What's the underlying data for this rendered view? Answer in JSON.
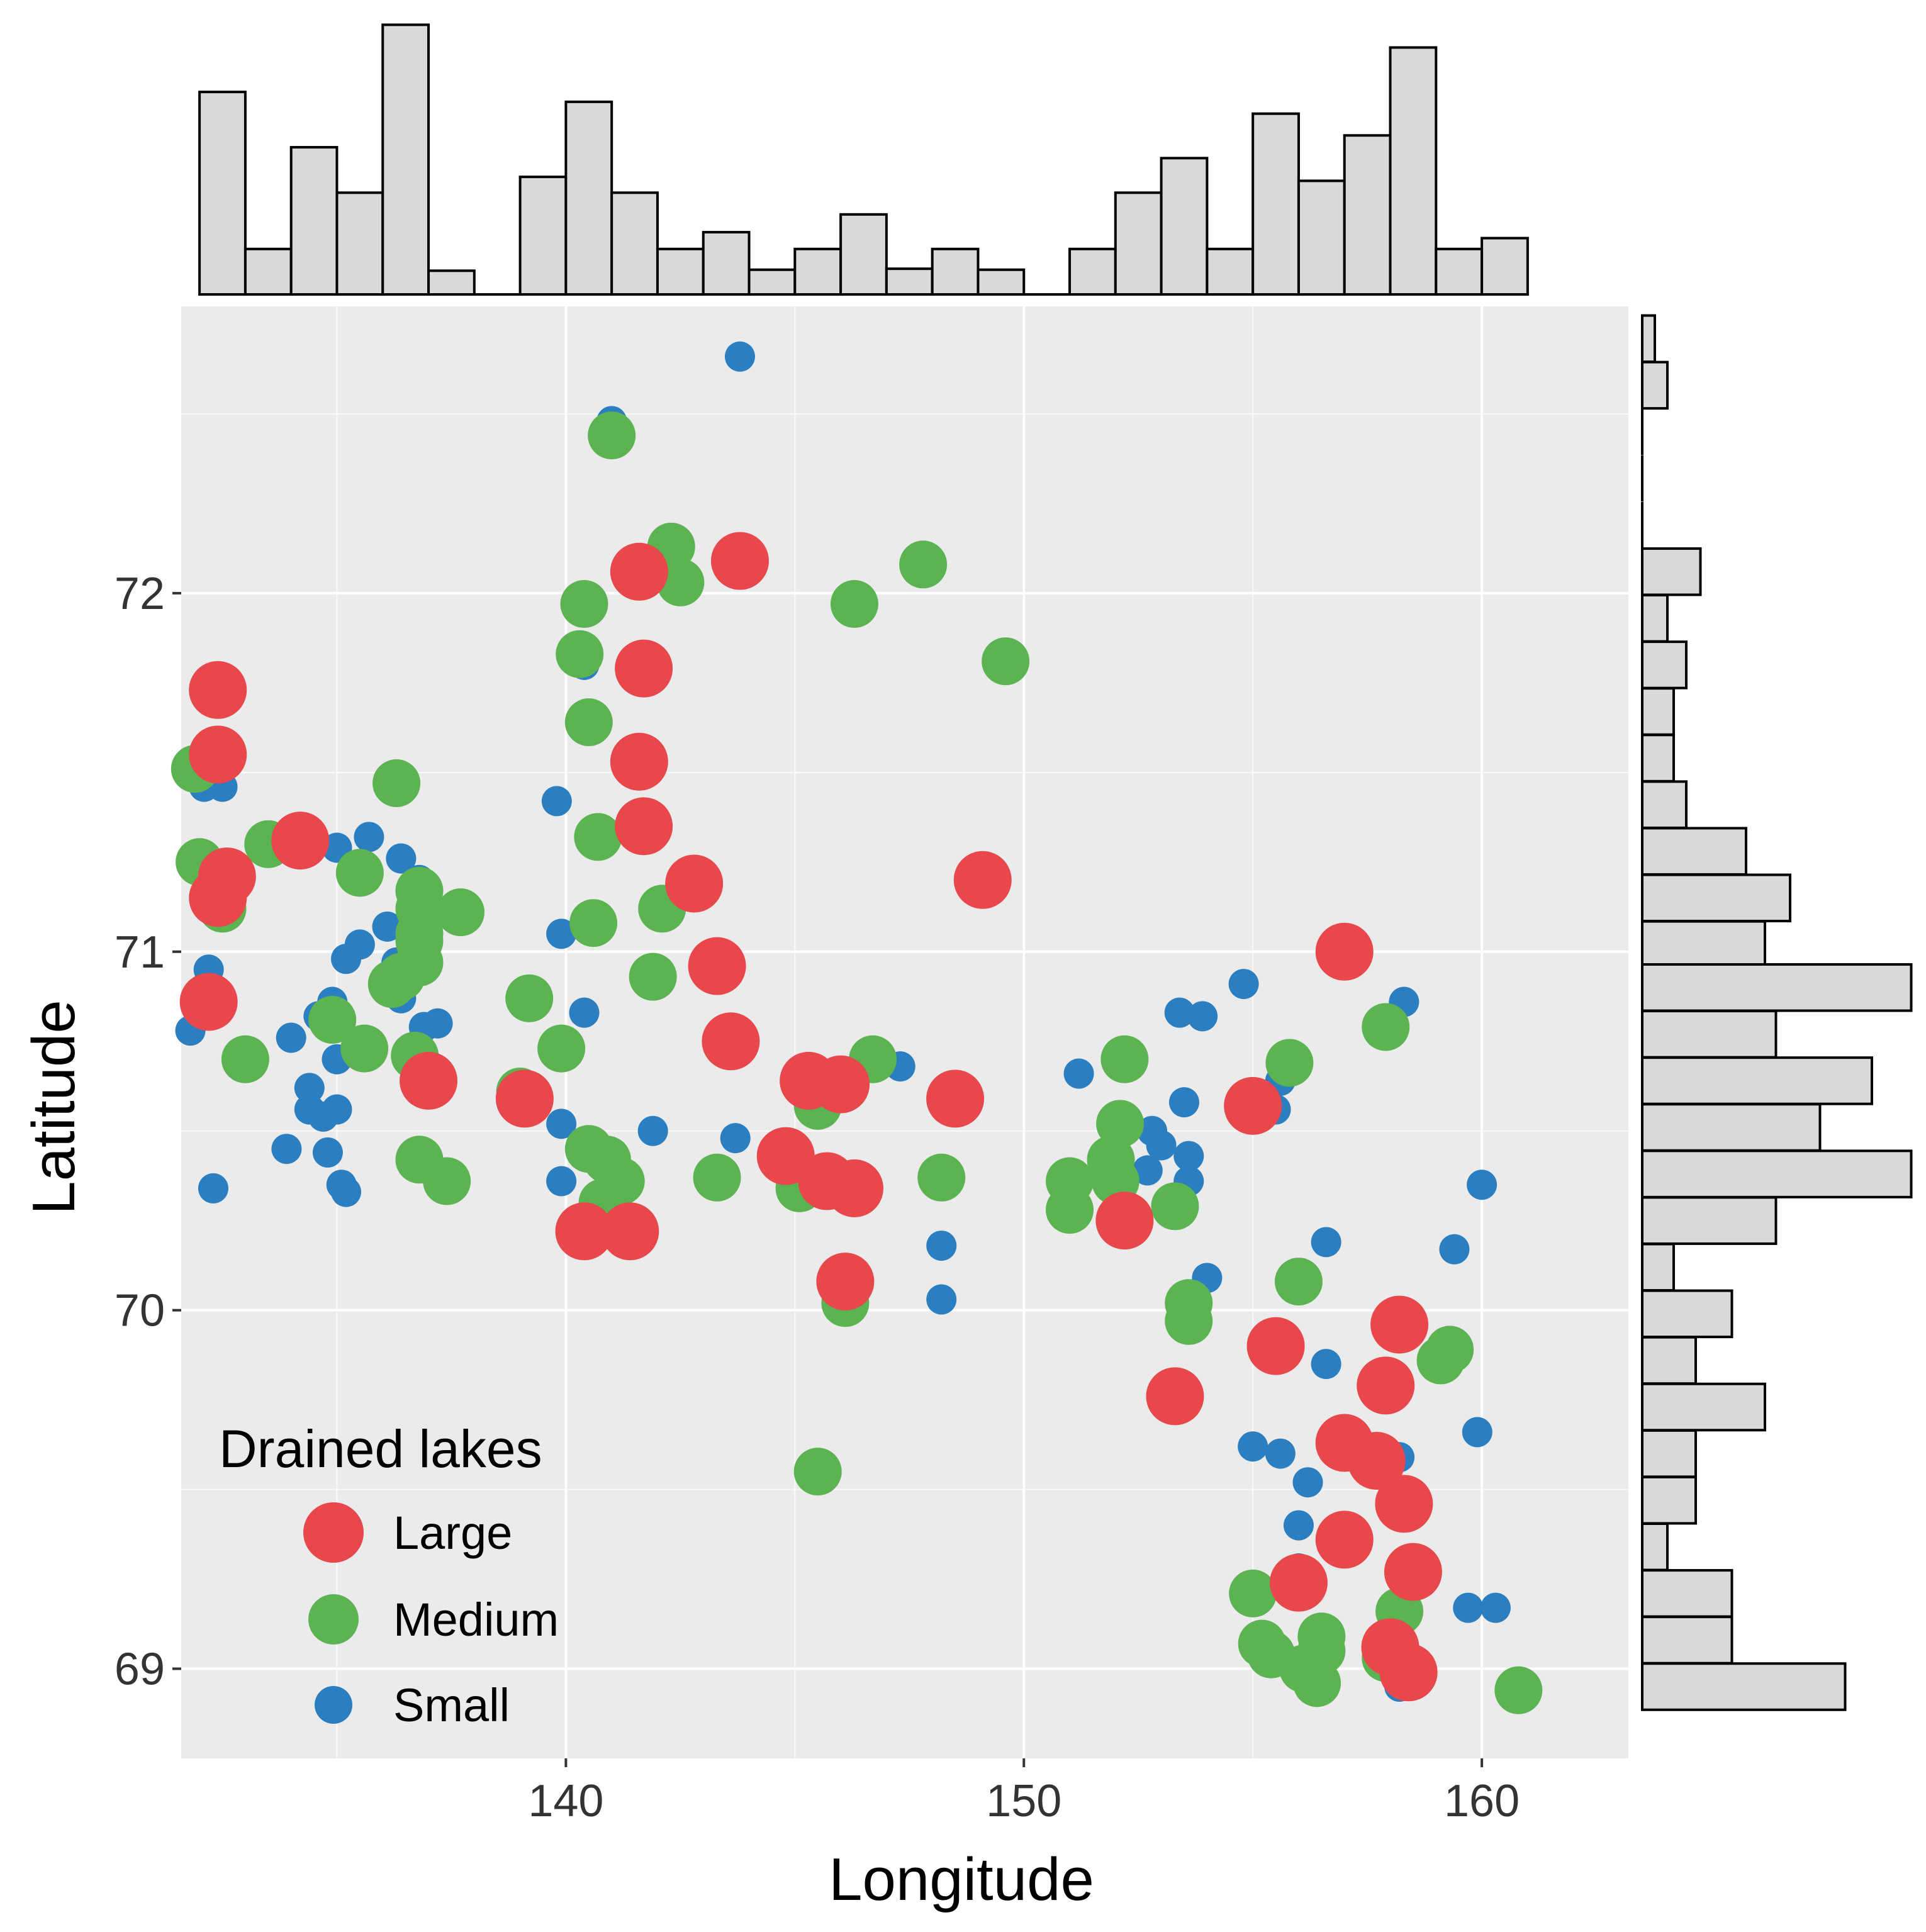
{
  "chart_data": {
    "type": "scatter",
    "title": "",
    "xlabel": "Longitude",
    "ylabel": "Latitude",
    "xlim": [
      131.6,
      163.2
    ],
    "ylim": [
      68.75,
      72.8
    ],
    "x_ticks": [
      140,
      150,
      160
    ],
    "y_ticks": [
      69,
      70,
      71,
      72
    ],
    "x_tick_labels": [
      "140",
      "150",
      "160"
    ],
    "y_tick_labels": [
      "69",
      "70",
      "71",
      "72"
    ],
    "grid": true,
    "legend": {
      "title": "Drained lakes",
      "placement": "bottom-left",
      "entries": [
        {
          "label": "Large",
          "color": "#e8474b",
          "size": "large"
        },
        {
          "label": "Medium",
          "color": "#5cb352",
          "size": "medium"
        },
        {
          "label": "Small",
          "color": "#2b7fc0",
          "size": "small"
        }
      ]
    },
    "series": [
      {
        "name": "Small",
        "color": "#2b7fc0",
        "points": [
          [
            143.8,
            72.66
          ],
          [
            141.0,
            72.48
          ],
          [
            140.4,
            71.8
          ],
          [
            139.8,
            71.42
          ],
          [
            139.9,
            71.05
          ],
          [
            140.4,
            70.83
          ],
          [
            139.9,
            70.52
          ],
          [
            141.9,
            70.5
          ],
          [
            143.7,
            70.48
          ],
          [
            139.9,
            70.36
          ],
          [
            147.3,
            70.68
          ],
          [
            148.2,
            70.18
          ],
          [
            148.2,
            70.03
          ],
          [
            151.2,
            70.66
          ],
          [
            153.4,
            70.83
          ],
          [
            153.9,
            70.82
          ],
          [
            154.8,
            70.91
          ],
          [
            155.6,
            70.64
          ],
          [
            155.5,
            70.56
          ],
          [
            158.3,
            70.86
          ],
          [
            153.5,
            70.58
          ],
          [
            152.8,
            70.5
          ],
          [
            153.0,
            70.46
          ],
          [
            153.6,
            70.43
          ],
          [
            152.7,
            70.39
          ],
          [
            153.6,
            70.36
          ],
          [
            152.3,
            70.28
          ],
          [
            154.0,
            70.09
          ],
          [
            156.6,
            70.19
          ],
          [
            156.6,
            69.85
          ],
          [
            159.4,
            70.17
          ],
          [
            160.0,
            70.35
          ],
          [
            159.9,
            69.66
          ],
          [
            155.0,
            69.62
          ],
          [
            155.6,
            69.6
          ],
          [
            156.2,
            69.52
          ],
          [
            158.2,
            69.59
          ],
          [
            156.0,
            69.4
          ],
          [
            156.0,
            69.28
          ],
          [
            159.7,
            69.17
          ],
          [
            160.3,
            69.17
          ],
          [
            158.2,
            68.95
          ],
          [
            132.1,
            71.46
          ],
          [
            132.5,
            71.46
          ],
          [
            135.0,
            71.29
          ],
          [
            135.7,
            71.32
          ],
          [
            136.4,
            71.26
          ],
          [
            136.8,
            71.2
          ],
          [
            135.2,
            70.98
          ],
          [
            135.5,
            71.02
          ],
          [
            136.1,
            71.07
          ],
          [
            136.5,
            71.07
          ],
          [
            136.9,
            71.12
          ],
          [
            136.3,
            70.97
          ],
          [
            136.7,
            70.95
          ],
          [
            134.9,
            70.86
          ],
          [
            134.6,
            70.82
          ],
          [
            134.0,
            70.76
          ],
          [
            136.4,
            70.87
          ],
          [
            136.9,
            70.79
          ],
          [
            137.2,
            70.8
          ],
          [
            131.8,
            70.78
          ],
          [
            132.2,
            70.95
          ],
          [
            135.0,
            70.7
          ],
          [
            134.4,
            70.62
          ],
          [
            134.4,
            70.56
          ],
          [
            135.0,
            70.56
          ],
          [
            134.7,
            70.54
          ],
          [
            133.9,
            70.45
          ],
          [
            134.8,
            70.44
          ],
          [
            135.1,
            70.35
          ],
          [
            135.2,
            70.33
          ],
          [
            132.3,
            70.34
          ]
        ]
      },
      {
        "name": "Medium",
        "color": "#5cb352",
        "points": [
          [
            141.0,
            72.44
          ],
          [
            142.3,
            72.13
          ],
          [
            142.5,
            72.03
          ],
          [
            147.8,
            72.08
          ],
          [
            146.3,
            71.97
          ],
          [
            140.4,
            71.97
          ],
          [
            149.6,
            71.81
          ],
          [
            140.3,
            71.83
          ],
          [
            140.5,
            71.64
          ],
          [
            140.7,
            71.32
          ],
          [
            142.1,
            71.12
          ],
          [
            140.6,
            71.08
          ],
          [
            141.9,
            70.93
          ],
          [
            139.2,
            70.87
          ],
          [
            139.9,
            70.73
          ],
          [
            146.7,
            70.7
          ],
          [
            145.5,
            70.57
          ],
          [
            140.5,
            70.45
          ],
          [
            140.9,
            70.42
          ],
          [
            141.2,
            70.36
          ],
          [
            140.8,
            70.3
          ],
          [
            143.3,
            70.37
          ],
          [
            145.1,
            70.34
          ],
          [
            148.2,
            70.37
          ],
          [
            146.1,
            70.02
          ],
          [
            145.5,
            69.55
          ],
          [
            152.2,
            70.7
          ],
          [
            152.1,
            70.52
          ],
          [
            151.9,
            70.42
          ],
          [
            152.0,
            70.36
          ],
          [
            151.0,
            70.36
          ],
          [
            151.0,
            70.28
          ],
          [
            153.3,
            70.29
          ],
          [
            153.6,
            70.02
          ],
          [
            153.6,
            69.97
          ],
          [
            155.8,
            70.69
          ],
          [
            157.9,
            70.79
          ],
          [
            156.0,
            70.08
          ],
          [
            159.3,
            69.89
          ],
          [
            159.1,
            69.86
          ],
          [
            155.0,
            69.21
          ],
          [
            155.2,
            69.07
          ],
          [
            155.4,
            69.04
          ],
          [
            156.5,
            69.09
          ],
          [
            156.5,
            69.05
          ],
          [
            156.1,
            69.0
          ],
          [
            156.4,
            68.96
          ],
          [
            158.2,
            69.16
          ],
          [
            157.9,
            69.03
          ],
          [
            160.8,
            68.94
          ],
          [
            131.9,
            71.51
          ],
          [
            132.0,
            71.25
          ],
          [
            132.5,
            71.12
          ],
          [
            133.5,
            71.3
          ],
          [
            135.5,
            71.22
          ],
          [
            136.3,
            71.47
          ],
          [
            136.8,
            71.17
          ],
          [
            136.8,
            71.12
          ],
          [
            136.8,
            71.05
          ],
          [
            136.8,
            71.03
          ],
          [
            136.8,
            70.97
          ],
          [
            136.4,
            70.93
          ],
          [
            136.2,
            70.91
          ],
          [
            137.7,
            71.11
          ],
          [
            134.9,
            70.81
          ],
          [
            135.6,
            70.73
          ],
          [
            133.0,
            70.7
          ],
          [
            136.7,
            70.71
          ],
          [
            136.8,
            70.42
          ],
          [
            137.4,
            70.36
          ],
          [
            139.0,
            70.61
          ]
        ]
      },
      {
        "name": "Large",
        "color": "#e8474b",
        "points": [
          [
            143.8,
            72.09
          ],
          [
            141.6,
            72.06
          ],
          [
            141.7,
            71.79
          ],
          [
            141.6,
            71.53
          ],
          [
            141.7,
            71.35
          ],
          [
            142.8,
            71.19
          ],
          [
            149.1,
            71.2
          ],
          [
            143.3,
            70.96
          ],
          [
            143.6,
            70.75
          ],
          [
            145.3,
            70.64
          ],
          [
            146.0,
            70.63
          ],
          [
            148.5,
            70.59
          ],
          [
            139.1,
            70.59
          ],
          [
            144.8,
            70.43
          ],
          [
            145.7,
            70.36
          ],
          [
            146.3,
            70.34
          ],
          [
            140.4,
            70.22
          ],
          [
            141.4,
            70.22
          ],
          [
            146.1,
            70.08
          ],
          [
            157.0,
            71.0
          ],
          [
            155.0,
            70.57
          ],
          [
            152.2,
            70.25
          ],
          [
            158.2,
            69.96
          ],
          [
            155.5,
            69.9
          ],
          [
            157.9,
            69.79
          ],
          [
            153.3,
            69.76
          ],
          [
            157.0,
            69.63
          ],
          [
            157.7,
            69.58
          ],
          [
            158.3,
            69.46
          ],
          [
            157.0,
            69.36
          ],
          [
            158.5,
            69.27
          ],
          [
            156.0,
            69.24
          ],
          [
            158.0,
            69.06
          ],
          [
            158.4,
            68.99
          ],
          [
            132.4,
            71.73
          ],
          [
            132.4,
            71.55
          ],
          [
            134.2,
            71.31
          ],
          [
            132.6,
            71.21
          ],
          [
            132.4,
            71.15
          ],
          [
            132.2,
            70.86
          ],
          [
            137.0,
            70.64
          ]
        ]
      }
    ],
    "x_histogram": {
      "bin_width": 1.0,
      "bins": [
        [
          132.5,
          2.05
        ],
        [
          133.5,
          0.46
        ],
        [
          134.5,
          1.49
        ],
        [
          135.5,
          1.03
        ],
        [
          136.5,
          2.73
        ],
        [
          137.5,
          0.24
        ],
        [
          138.5,
          0
        ],
        [
          139.5,
          1.19
        ],
        [
          140.5,
          1.95
        ],
        [
          141.5,
          1.03
        ],
        [
          142.5,
          0.46
        ],
        [
          143.5,
          0.63
        ],
        [
          144.5,
          0.25
        ],
        [
          145.5,
          0.46
        ],
        [
          146.5,
          0.81
        ],
        [
          147.5,
          0.26
        ],
        [
          148.5,
          0.46
        ],
        [
          149.5,
          0.25
        ],
        [
          150.5,
          0
        ],
        [
          151.5,
          0.46
        ],
        [
          152.5,
          1.03
        ],
        [
          153.5,
          1.38
        ],
        [
          154.5,
          0.46
        ],
        [
          155.5,
          1.83
        ],
        [
          156.5,
          1.15
        ],
        [
          157.5,
          1.61
        ],
        [
          158.5,
          2.5
        ],
        [
          159.5,
          0.46
        ],
        [
          160.5,
          0.57
        ]
      ]
    },
    "y_histogram": {
      "bin_width": 0.129,
      "bins": [
        [
          72.71,
          0.08
        ],
        [
          72.58,
          0.16
        ],
        [
          72.45,
          0
        ],
        [
          72.32,
          0
        ],
        [
          72.19,
          0
        ],
        [
          72.06,
          0.37
        ],
        [
          71.93,
          0.16
        ],
        [
          71.8,
          0.28
        ],
        [
          71.67,
          0.2
        ],
        [
          71.54,
          0.2
        ],
        [
          71.41,
          0.28
        ],
        [
          71.28,
          0.66
        ],
        [
          71.15,
          0.94
        ],
        [
          71.02,
          0.78
        ],
        [
          70.9,
          1.71
        ],
        [
          70.77,
          0.85
        ],
        [
          70.64,
          1.46
        ],
        [
          70.51,
          1.13
        ],
        [
          70.38,
          1.71
        ],
        [
          70.25,
          0.85
        ],
        [
          70.12,
          0.2
        ],
        [
          69.99,
          0.57
        ],
        [
          69.86,
          0.34
        ],
        [
          69.73,
          0.78
        ],
        [
          69.6,
          0.34
        ],
        [
          69.47,
          0.34
        ],
        [
          69.34,
          0.16
        ],
        [
          69.21,
          0.57
        ],
        [
          69.08,
          0.57
        ],
        [
          68.95,
          1.29
        ]
      ]
    }
  }
}
